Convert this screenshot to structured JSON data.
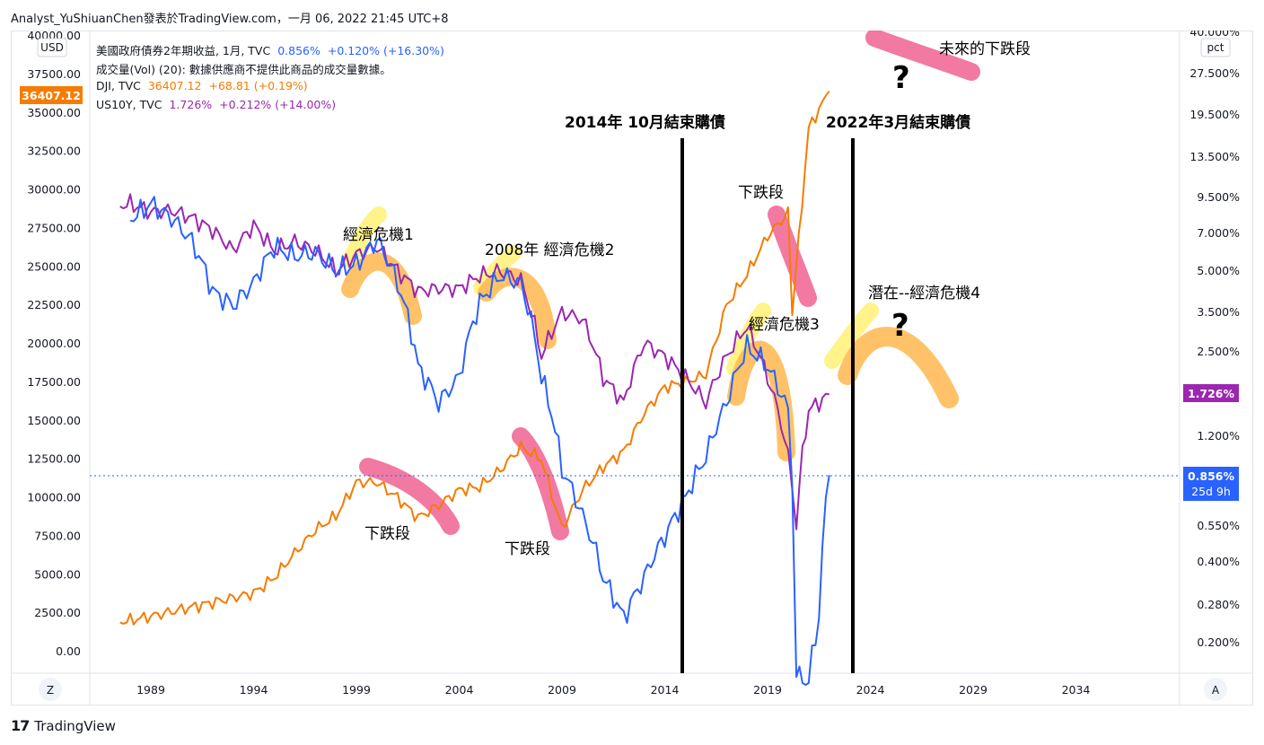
{
  "header": {
    "publisher_line": "Analyst_YuShiuanChen發表於TradingView.com，一月 06, 2022 21:45 UTC+8"
  },
  "legend": {
    "us2y": {
      "label": "美國政府債券2年期收益, 1月, TVC",
      "value": "0.856%",
      "change": "+0.120% (+16.30%)"
    },
    "volume": {
      "label": "成交量(Vol) (20): 數據供應商不提供此商品的成交量數據。"
    },
    "dji": {
      "label": "DJI, TVC",
      "value": "36407.12",
      "change": "+68.81 (+0.19%)"
    },
    "us10y": {
      "label": "US10Y, TVC",
      "value": "1.726%",
      "change": "+0.212% (+14.00%)"
    }
  },
  "left_axis": {
    "unit": "USD",
    "ticks": [
      "40000.00",
      "37500.00",
      "35000.00",
      "32500.00",
      "30000.00",
      "27500.00",
      "25000.00",
      "22500.00",
      "20000.00",
      "17500.00",
      "15000.00",
      "12500.00",
      "10000.00",
      "7500.00",
      "5000.00",
      "2500.00",
      "0.00"
    ],
    "price_tag": "36407.12"
  },
  "right_axis": {
    "unit": "pct",
    "ticks": [
      "40.000%",
      "27.500%",
      "19.500%",
      "13.500%",
      "9.500%",
      "7.000%",
      "5.000%",
      "3.500%",
      "2.500%",
      "1.200%",
      "0.550%",
      "0.400%",
      "0.280%",
      "0.200%"
    ],
    "tag_10y": "1.726%",
    "tag_2y": "0.856%",
    "tag_2y_time": "25d 9h"
  },
  "time_axis": {
    "ticks": [
      "1989",
      "1994",
      "1999",
      "2004",
      "2009",
      "2014",
      "2019",
      "2024",
      "2029",
      "2034"
    ],
    "left_button": "Z",
    "right_button": "A"
  },
  "annotations": {
    "qe_end_2014": "2014年 10月結束購債",
    "qe_end_2022": "2022年3月結束購債",
    "crisis1": "經濟危機1",
    "crisis2": "2008年 經濟危機2",
    "crisis3": "經濟危機3",
    "crisis4": "潛在--經濟危機4",
    "decline1": "下跌段",
    "decline2": "下跌段",
    "decline3": "下跌段",
    "future_decline": "未來的下跌段",
    "question1": "?",
    "question2": "?"
  },
  "colors": {
    "dji": "#f57c00",
    "us10y": "#9c27b0",
    "us2y": "#2962ff",
    "highlight_yellow": "#fff176",
    "highlight_orange": "#ffb74d",
    "highlight_red": "#f06292"
  },
  "footer": {
    "brand": "TradingView"
  },
  "chart_data": {
    "type": "line",
    "x_unit": "year",
    "left_axis_range": [
      0,
      40000
    ],
    "series": [
      {
        "name": "DJI, TVC",
        "axis": "left",
        "x": [
          1987.5,
          1989,
          1990,
          1991,
          1992,
          1993,
          1994,
          1995,
          1996,
          1997,
          1998,
          1999,
          2000,
          2001,
          2002,
          2003,
          2004,
          2005,
          2006,
          2007,
          2008,
          2009,
          2010,
          2011,
          2012,
          2013,
          2014,
          2015,
          2016,
          2017,
          2018,
          2019,
          2020,
          2020.2,
          2021,
          2022
        ],
        "y": [
          1900,
          2300,
          2600,
          2900,
          3200,
          3500,
          3800,
          4800,
          6400,
          7900,
          8800,
          11000,
          11000,
          10000,
          8700,
          9500,
          10500,
          10700,
          11800,
          13300,
          12500,
          8000,
          10500,
          12000,
          13000,
          15500,
          17200,
          17500,
          18000,
          22500,
          24500,
          27000,
          28500,
          22000,
          34000,
          36400
        ]
      },
      {
        "name": "US10Y, TVC",
        "axis": "right",
        "x": [
          1987.5,
          1988,
          1989,
          1990,
          1991,
          1992,
          1993,
          1994,
          1995,
          1996,
          1997,
          1998,
          1999,
          2000,
          2001,
          2002,
          2003,
          2004,
          2005,
          2006,
          2007,
          2008,
          2009,
          2010,
          2011,
          2012,
          2013,
          2014,
          2015,
          2016,
          2017,
          2018,
          2019,
          2020,
          2020.4,
          2021,
          2022
        ],
        "y": [
          8.8,
          9.0,
          8.4,
          8.5,
          8.0,
          7.2,
          6.0,
          7.5,
          6.0,
          6.5,
          6.0,
          5.0,
          5.8,
          6.2,
          5.0,
          4.2,
          4.3,
          4.3,
          4.8,
          5.0,
          4.6,
          2.4,
          3.5,
          3.3,
          2.0,
          1.6,
          2.7,
          2.4,
          2.0,
          1.6,
          2.4,
          3.1,
          2.0,
          1.0,
          0.55,
          1.5,
          1.726
        ]
      },
      {
        "name": "美國政府債券2年期收益",
        "axis": "right",
        "x": [
          1988,
          1989,
          1990,
          1991,
          1992,
          1993,
          1994,
          1995,
          1996,
          1997,
          1998,
          1999,
          2000,
          2001,
          2002,
          2003,
          2004,
          2005,
          2006,
          2007,
          2008,
          2009,
          2010,
          2011,
          2012,
          2013,
          2014,
          2015,
          2016,
          2017,
          2018,
          2019,
          2020,
          2020.4,
          2021,
          2021.5,
          2022
        ],
        "y": [
          7.8,
          9.0,
          8.0,
          6.5,
          4.2,
          3.7,
          4.5,
          6.2,
          5.7,
          5.9,
          5.0,
          5.3,
          6.6,
          4.5,
          2.2,
          1.6,
          2.0,
          3.8,
          4.8,
          4.5,
          2.0,
          0.9,
          0.6,
          0.35,
          0.25,
          0.35,
          0.5,
          0.7,
          1.0,
          1.6,
          2.6,
          2.2,
          1.5,
          0.15,
          0.14,
          0.25,
          0.856
        ]
      }
    ]
  }
}
